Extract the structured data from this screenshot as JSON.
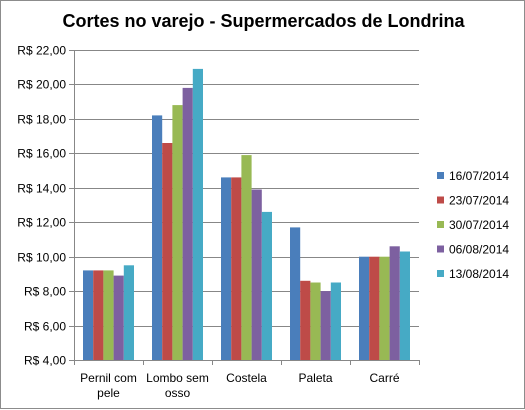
{
  "chart_data": {
    "type": "bar",
    "title": "Cortes no varejo - Supermercados de Londrina",
    "xlabel": "",
    "ylabel": "",
    "ylim": [
      4,
      22
    ],
    "ytick_step": 2,
    "ytick_labels": [
      "R$ 4,00",
      "R$ 6,00",
      "R$ 8,00",
      "R$ 10,00",
      "R$ 12,00",
      "R$ 14,00",
      "R$ 16,00",
      "R$ 18,00",
      "R$ 20,00",
      "R$ 22,00"
    ],
    "categories": [
      [
        "Pernil com",
        "pele"
      ],
      [
        "Lombo sem",
        "osso"
      ],
      [
        "Costela"
      ],
      [
        "Paleta"
      ],
      [
        "Carré"
      ]
    ],
    "grid": true,
    "legend_position": "right",
    "series": [
      {
        "name": "16/07/2014",
        "color": "#4a7ebb",
        "values": [
          9.2,
          18.2,
          14.6,
          11.7,
          10.0
        ]
      },
      {
        "name": "23/07/2014",
        "color": "#be4b48",
        "values": [
          9.2,
          16.6,
          14.6,
          8.6,
          10.0
        ]
      },
      {
        "name": "30/07/2014",
        "color": "#98b954",
        "values": [
          9.2,
          18.8,
          15.9,
          8.5,
          10.0
        ]
      },
      {
        "name": "06/08/2014",
        "color": "#7d60a0",
        "values": [
          8.9,
          19.8,
          13.9,
          8.0,
          10.6
        ]
      },
      {
        "name": "13/08/2014",
        "color": "#46aac5",
        "values": [
          9.5,
          20.9,
          12.6,
          8.5,
          10.3
        ]
      }
    ]
  }
}
